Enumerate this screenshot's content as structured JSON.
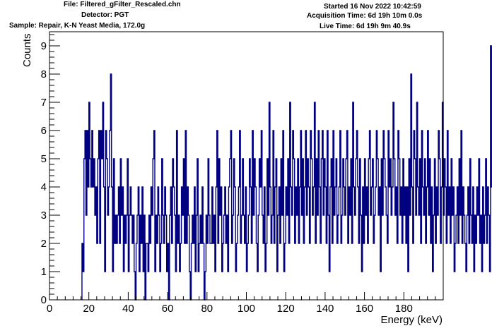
{
  "header": {
    "file": "File: Filtered_gFilter_Rescaled.chn",
    "detector": "Detector: PGT",
    "sample": "Sample: Repair, K-N Yeast Media, 172.0g",
    "started": "Started 16 Nov 2022 10:42:59",
    "acq_time": "Acquisition Time: 6d 19h 10m 0.0s",
    "live_time": "Live Time: 6d 19h 9m 40.9s"
  },
  "chart_data": {
    "type": "histogram",
    "xlabel": "Energy (keV)",
    "ylabel": "Counts",
    "xlim": [
      0,
      200
    ],
    "ylim": [
      0,
      9.5
    ],
    "x_ticks": [
      0,
      20,
      40,
      60,
      80,
      100,
      120,
      140,
      160,
      180
    ],
    "y_ticks": [
      0,
      1,
      2,
      3,
      4,
      5,
      6,
      7,
      8,
      9
    ],
    "line_color": "#000080",
    "bin_width": 0.5,
    "x_start": 16.5,
    "counts": [
      2,
      1,
      5,
      6,
      3,
      6,
      4,
      7,
      5,
      4,
      6,
      4,
      5,
      3,
      4,
      2,
      5,
      6,
      2,
      6,
      5,
      7,
      4,
      1,
      6,
      5,
      3,
      4,
      6,
      8,
      4,
      1,
      5,
      2,
      3,
      2,
      3,
      4,
      2,
      5,
      3,
      4,
      1,
      3,
      2,
      3,
      5,
      1,
      3,
      4,
      3,
      2,
      3,
      1,
      0,
      2,
      3,
      4,
      1,
      3,
      2,
      4,
      1,
      3,
      0,
      2,
      2,
      1,
      3,
      2,
      4,
      3,
      5,
      6,
      1,
      3,
      2,
      4,
      3,
      1,
      2,
      5,
      3,
      2,
      4,
      3,
      1,
      2,
      0,
      3,
      4,
      2,
      5,
      4,
      3,
      1,
      6,
      2,
      3,
      1,
      2,
      4,
      3,
      5,
      2,
      6,
      2,
      4,
      3,
      1,
      0,
      2,
      3,
      2,
      4,
      1,
      3,
      5,
      1,
      2,
      3,
      2,
      4,
      2,
      0,
      1,
      3,
      2,
      5,
      3,
      2,
      2,
      4,
      2,
      3,
      1,
      4,
      6,
      2,
      5,
      3,
      4,
      1,
      2,
      3,
      4,
      2,
      3,
      1,
      4,
      5,
      6,
      2,
      3,
      5,
      4,
      1,
      2,
      3,
      4,
      6,
      2,
      3,
      5,
      3,
      2,
      4,
      1,
      2,
      3,
      5,
      4,
      2,
      6,
      3,
      5,
      4,
      2,
      1,
      3,
      5,
      4,
      6,
      3,
      2,
      4,
      1,
      2,
      5,
      3,
      7,
      4,
      2,
      3,
      6,
      2,
      4,
      5,
      1,
      3,
      4,
      2,
      5,
      3,
      6,
      1,
      2,
      4,
      3,
      5,
      2,
      7,
      4,
      3,
      6,
      5,
      2,
      4,
      3,
      5,
      2,
      4,
      6,
      3,
      5,
      2,
      4,
      6,
      3,
      5,
      4,
      2,
      6,
      5,
      3,
      4,
      7,
      2,
      5,
      3,
      6,
      4,
      2,
      5,
      6,
      3,
      5,
      4,
      2,
      6,
      3,
      1,
      4,
      5,
      2,
      6,
      3,
      4,
      5,
      2,
      3,
      4,
      6,
      2,
      3,
      5,
      4,
      3,
      5,
      6,
      2,
      4,
      3,
      5,
      2,
      7,
      4,
      3,
      5,
      6,
      4,
      2,
      5,
      3,
      1,
      4,
      2,
      5,
      3,
      4,
      2,
      5,
      6,
      3,
      4,
      5,
      2,
      3,
      4,
      6,
      5,
      3,
      4,
      1,
      5,
      3,
      6,
      5,
      4,
      3,
      2,
      6,
      4,
      5,
      3,
      4,
      7,
      5,
      3,
      4,
      2,
      6,
      5,
      3,
      4,
      2,
      5,
      3,
      4,
      2,
      4,
      1,
      5,
      3,
      8,
      4,
      2,
      6,
      5,
      3,
      7,
      4,
      3,
      5,
      2,
      6,
      4,
      3,
      5,
      2,
      4,
      6,
      3,
      5,
      2,
      4,
      1,
      3,
      5,
      2,
      4,
      3,
      6,
      5,
      2,
      4,
      7,
      3,
      5,
      4,
      2,
      6,
      3,
      4,
      2,
      5,
      3,
      4,
      1,
      2,
      3,
      4,
      2,
      5,
      3,
      6,
      2,
      4,
      3,
      2,
      1,
      3,
      4,
      2,
      5,
      3,
      2,
      4,
      1,
      3,
      2,
      4,
      3,
      5,
      2,
      3,
      1,
      4,
      2,
      3,
      5,
      2,
      4,
      3,
      1,
      9,
      4,
      3,
      5
    ]
  }
}
